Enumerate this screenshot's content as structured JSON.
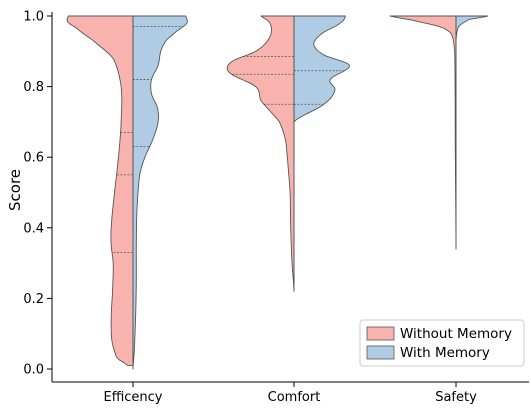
{
  "chart_data": {
    "type": "violin",
    "title": "",
    "xlabel": "",
    "ylabel": "Score",
    "ylim": [
      0.0,
      1.0
    ],
    "yticks": [
      "0.0",
      "0.2",
      "0.4",
      "0.6",
      "0.8",
      "1.0"
    ],
    "categories": [
      "Efficency",
      "Comfort",
      "Safety"
    ],
    "legend_position": "lower-right",
    "series": [
      {
        "name": "Without Memory",
        "color": "#f9b3ae",
        "quartiles": [
          [
            0.33,
            0.55,
            0.67
          ],
          [
            0.75,
            0.835,
            0.885
          ],
          [
            1.0,
            1.0,
            1.0
          ]
        ],
        "density": [
          [
            [
              0.01,
              0.08
            ],
            [
              0.03,
              0.24
            ],
            [
              0.08,
              0.32
            ],
            [
              0.15,
              0.33
            ],
            [
              0.22,
              0.31
            ],
            [
              0.3,
              0.3
            ],
            [
              0.35,
              0.33
            ],
            [
              0.4,
              0.33
            ],
            [
              0.5,
              0.28
            ],
            [
              0.6,
              0.22
            ],
            [
              0.7,
              0.18
            ],
            [
              0.8,
              0.18
            ],
            [
              0.88,
              0.3
            ],
            [
              0.93,
              0.6
            ],
            [
              0.97,
              0.88
            ],
            [
              0.985,
              1.0
            ],
            [
              1.0,
              0.98
            ]
          ],
          [
            [
              0.22,
              0.0
            ],
            [
              0.3,
              0.03
            ],
            [
              0.4,
              0.05
            ],
            [
              0.5,
              0.06
            ],
            [
              0.6,
              0.1
            ],
            [
              0.65,
              0.13
            ],
            [
              0.7,
              0.22
            ],
            [
              0.73,
              0.36
            ],
            [
              0.76,
              0.5
            ],
            [
              0.8,
              0.58
            ],
            [
              0.84,
              0.98
            ],
            [
              0.87,
              0.95
            ],
            [
              0.9,
              0.58
            ],
            [
              0.93,
              0.4
            ],
            [
              0.96,
              0.34
            ],
            [
              0.985,
              0.38
            ],
            [
              1.0,
              0.5
            ]
          ],
          [
            [
              0.34,
              0.0
            ],
            [
              0.6,
              0.01
            ],
            [
              0.9,
              0.02
            ],
            [
              0.95,
              0.07
            ],
            [
              0.97,
              0.25
            ],
            [
              0.99,
              0.7
            ],
            [
              1.0,
              1.0
            ]
          ]
        ]
      },
      {
        "name": "With Memory",
        "color": "#b0cce4",
        "quartiles": [
          [
            0.63,
            0.82,
            0.97
          ],
          [
            0.75,
            0.845,
            1.0
          ],
          [
            1.0,
            1.0,
            1.0
          ]
        ],
        "density": [
          [
            [
              0.0,
              0.0
            ],
            [
              0.05,
              0.02
            ],
            [
              0.15,
              0.04
            ],
            [
              0.25,
              0.05
            ],
            [
              0.35,
              0.05
            ],
            [
              0.45,
              0.06
            ],
            [
              0.55,
              0.1
            ],
            [
              0.6,
              0.18
            ],
            [
              0.65,
              0.3
            ],
            [
              0.7,
              0.38
            ],
            [
              0.74,
              0.37
            ],
            [
              0.78,
              0.28
            ],
            [
              0.82,
              0.28
            ],
            [
              0.86,
              0.38
            ],
            [
              0.9,
              0.42
            ],
            [
              0.93,
              0.5
            ],
            [
              0.96,
              0.68
            ],
            [
              0.98,
              0.82
            ],
            [
              1.0,
              0.8
            ]
          ],
          [
            [
              0.7,
              0.0
            ],
            [
              0.75,
              0.45
            ],
            [
              0.79,
              0.62
            ],
            [
              0.82,
              0.55
            ],
            [
              0.86,
              0.84
            ],
            [
              0.89,
              0.45
            ],
            [
              0.92,
              0.3
            ],
            [
              0.95,
              0.42
            ],
            [
              0.98,
              0.7
            ],
            [
              1.0,
              0.78
            ]
          ],
          [
            [
              0.93,
              0.0
            ],
            [
              0.97,
              0.04
            ],
            [
              0.99,
              0.2
            ],
            [
              1.0,
              0.48
            ]
          ]
        ]
      }
    ]
  }
}
